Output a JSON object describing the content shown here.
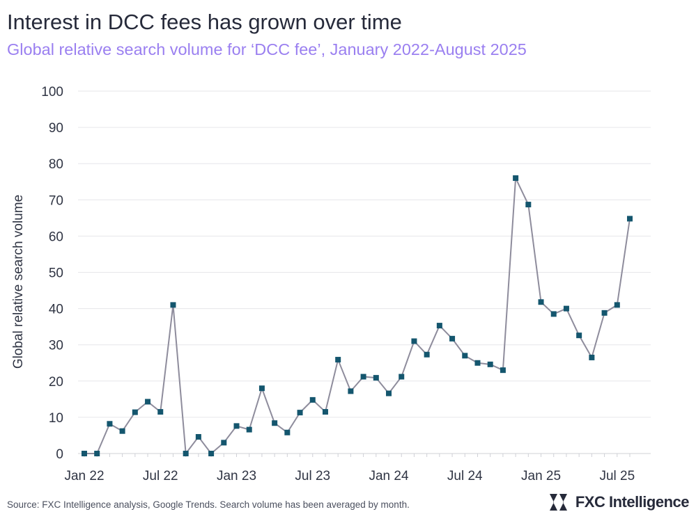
{
  "title": "Interest in DCC fees has grown over time",
  "subtitle": "Global relative search volume for ‘DCC fee’, January 2022-August 2025",
  "footer": "Source: FXC Intelligence analysis, Google Trends. Search volume has been averaged by month.",
  "brand": {
    "name": "FXC Intelligence",
    "icon": "fxc-logo-icon"
  },
  "colors": {
    "line": "#8e8c9c",
    "marker": "#14566e",
    "grid": "#e6e6ea",
    "title": "#262a3a",
    "subtitle": "#9a7ff0"
  },
  "chart_data": {
    "type": "line",
    "ylabel": "Global relative search volume",
    "ylim": [
      0,
      100
    ],
    "yticks": [
      0,
      10,
      20,
      30,
      40,
      50,
      60,
      70,
      80,
      90,
      100
    ],
    "xticks": [
      {
        "index": 0,
        "label": "Jan 22"
      },
      {
        "index": 6,
        "label": "Jul 22"
      },
      {
        "index": 12,
        "label": "Jan 23"
      },
      {
        "index": 18,
        "label": "Jul 23"
      },
      {
        "index": 24,
        "label": "Jan 24"
      },
      {
        "index": 30,
        "label": "Jul 24"
      },
      {
        "index": 36,
        "label": "Jan 25"
      },
      {
        "index": 42,
        "label": "Jul 25"
      }
    ],
    "grid": true,
    "x": [
      "2022-01",
      "2022-02",
      "2022-03",
      "2022-04",
      "2022-05",
      "2022-06",
      "2022-07",
      "2022-08",
      "2022-09",
      "2022-10",
      "2022-11",
      "2022-12",
      "2023-01",
      "2023-02",
      "2023-03",
      "2023-04",
      "2023-05",
      "2023-06",
      "2023-07",
      "2023-08",
      "2023-09",
      "2023-10",
      "2023-11",
      "2023-12",
      "2024-01",
      "2024-02",
      "2024-03",
      "2024-04",
      "2024-05",
      "2024-06",
      "2024-07",
      "2024-08",
      "2024-09",
      "2024-10",
      "2024-11",
      "2024-12",
      "2025-01",
      "2025-02",
      "2025-03",
      "2025-04",
      "2025-05",
      "2025-06",
      "2025-07",
      "2025-08"
    ],
    "series": [
      {
        "values": [
          0,
          0,
          8.2,
          6.2,
          11.4,
          14.3,
          11.5,
          41,
          0,
          4.6,
          0,
          3,
          7.6,
          6.6,
          18,
          8.4,
          5.8,
          11.3,
          14.8,
          11.5,
          25.9,
          17.2,
          21.2,
          20.9,
          16.6,
          21.2,
          31,
          27.3,
          35.3,
          31.7,
          27,
          25,
          24.6,
          23,
          76,
          68.7,
          41.8,
          38.5,
          40,
          32.6,
          26.5,
          38.8,
          41,
          64.8
        ]
      }
    ]
  }
}
